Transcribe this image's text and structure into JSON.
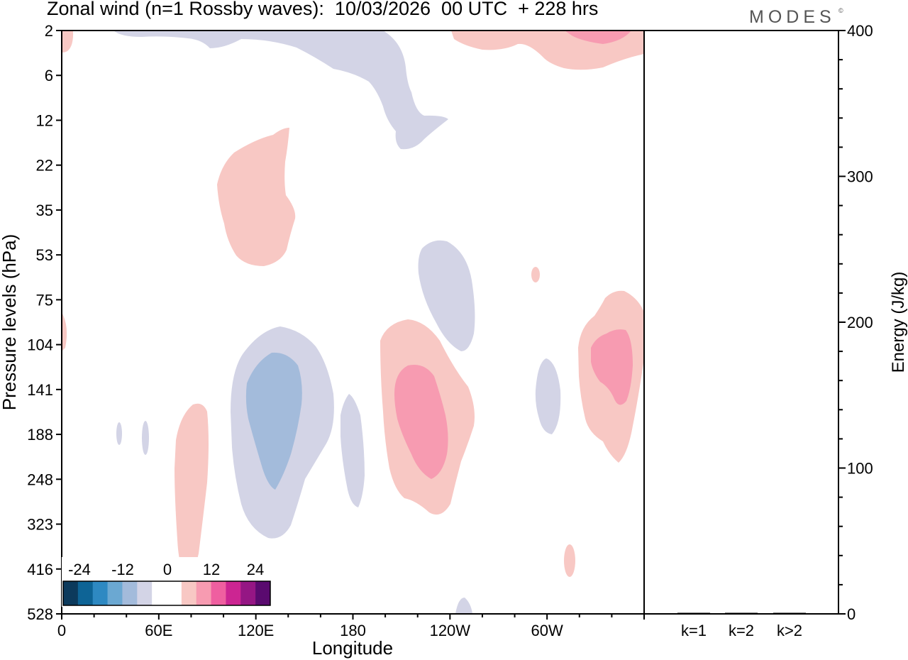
{
  "header": {
    "title": "Zonal wind (n=1 Rossby waves):  10/03/2026  00 UTC  + 228 hrs",
    "brand": "MODES",
    "brand_mark": "©"
  },
  "chart_data": {
    "type": "contour",
    "title": "Zonal wind (n=1 Rossby waves):  10/03/2026  00 UTC  + 228 hrs",
    "xlabel": "Longitude",
    "ylabel": "Pressure levels (hPa)",
    "x_ticks": [
      "0",
      "60E",
      "120E",
      "180",
      "120W",
      "60W"
    ],
    "x_range_deg": [
      0,
      360
    ],
    "y_ticks": [
      "2",
      "6",
      "12",
      "22",
      "35",
      "53",
      "75",
      "104",
      "141",
      "188",
      "248",
      "323",
      "416",
      "528"
    ],
    "colorbar": {
      "labels": [
        "-24",
        "-12",
        "0",
        "12",
        "24"
      ],
      "colors": [
        "#0c3a5c",
        "#0e6496",
        "#2e89c2",
        "#6ba8d2",
        "#a3bbdb",
        "#d3d4e6",
        "#ffffff",
        "#ffffff",
        "#f8c8c4",
        "#f79bb1",
        "#ef5fa0",
        "#cc2592",
        "#951684",
        "#5a0a6f"
      ],
      "neutral_color": "#ffffff"
    },
    "contour_regions": [
      {
        "sign": "negative",
        "level": 1,
        "lon": 130,
        "level_index": 8.9,
        "note": "broad easterly anomaly centred near 120E-140E"
      },
      {
        "sign": "negative",
        "level": 2,
        "lon": 127,
        "level_index": 8.6,
        "note": "core of easterly anomaly"
      },
      {
        "sign": "positive",
        "level": 1,
        "lon": 230,
        "level_index": 9.0,
        "note": "westerly anomaly near 140W"
      },
      {
        "sign": "positive",
        "level": 2,
        "lon": 227,
        "level_index": 9.0,
        "note": "core of westerly anomaly"
      },
      {
        "sign": "positive",
        "level": 1,
        "lon": 345,
        "level_index": 7.8,
        "note": "westerly anomaly near 30W"
      },
      {
        "sign": "positive",
        "level": 2,
        "lon": 347,
        "level_index": 7.9,
        "note": "core near 30W"
      },
      {
        "sign": "negative",
        "level": 1,
        "lon": 240,
        "level_index": 6.0,
        "note": "easterly anomaly near 120W upper levels"
      },
      {
        "sign": "positive",
        "level": 1,
        "lon": 105,
        "level_index": 3.5,
        "note": "westerly anomaly 22-53 hPa near 100E"
      },
      {
        "sign": "negative",
        "level": 1,
        "lon": 200,
        "level_index": 1.0,
        "note": "easterly anomaly upper stratosphere"
      },
      {
        "sign": "positive",
        "level": 1,
        "lon": 330,
        "level_index": 0.3,
        "note": "westerly anomaly at top"
      },
      {
        "sign": "positive",
        "level": 1,
        "lon": 75,
        "level_index": 11.0,
        "note": "westerly anomaly near 75E lower levels"
      }
    ],
    "energy_panel": {
      "ylabel": "Energy (J/kg)",
      "ylim": [
        0,
        400
      ],
      "y_ticks": [
        "0",
        "100",
        "200",
        "300",
        "400"
      ],
      "categories": [
        "k=1",
        "k=2",
        "k>2"
      ],
      "values": [
        0,
        0.5,
        0.5
      ]
    }
  }
}
